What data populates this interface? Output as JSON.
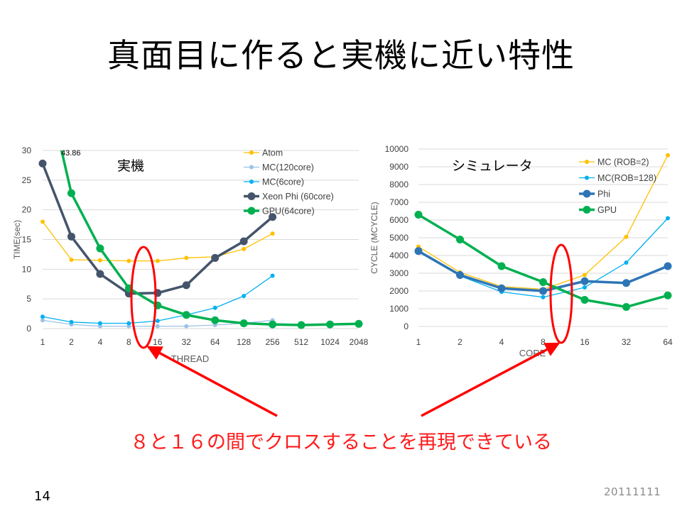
{
  "slide": {
    "title": "真面目に作ると実機に近い特性",
    "note": "８と１６の間でクロスすることを再現できている",
    "page_number": "14",
    "date": "20111111"
  },
  "colors": {
    "atom": "#ffc000",
    "mc120": "#9dc3e6",
    "mc6": "#00b0f0",
    "xeon": "#44546a",
    "gpu": "#00b050",
    "phi": "#2e75b6",
    "highlight": "#ff0000"
  },
  "chart_data": [
    {
      "type": "line",
      "title": "実機",
      "xlabel": "THREAD",
      "ylabel": "TIME(sec)",
      "categories": [
        "1",
        "2",
        "4",
        "8",
        "16",
        "32",
        "64",
        "128",
        "256",
        "512",
        "1024",
        "2048"
      ],
      "ylim": [
        0,
        30
      ],
      "yticks": [
        0,
        5,
        10,
        15,
        20,
        25,
        30
      ],
      "grid": true,
      "legend": "top-right",
      "annotations": [
        "43.86"
      ],
      "series": [
        {
          "name": "Atom",
          "color": "atom",
          "width": 1.3,
          "marker": 3,
          "values": [
            18,
            11.6,
            11.5,
            11.4,
            11.4,
            11.9,
            12.1,
            13.4,
            16,
            null,
            null,
            null
          ]
        },
        {
          "name": "MC(120core)",
          "color": "mc120",
          "width": 1.3,
          "marker": 3,
          "values": [
            1.4,
            0.7,
            0.4,
            0.4,
            0.4,
            0.4,
            0.6,
            0.9,
            1.4,
            null,
            null,
            null
          ]
        },
        {
          "name": "MC(6core)",
          "color": "mc6",
          "width": 1.3,
          "marker": 3,
          "values": [
            2,
            1.1,
            0.9,
            0.9,
            1.3,
            2.3,
            3.5,
            5.5,
            8.9,
            null,
            null,
            null
          ]
        },
        {
          "name": "Xeon Phi (60core)",
          "color": "xeon",
          "width": 3.5,
          "marker": 5.5,
          "values": [
            27.8,
            15.5,
            9.2,
            5.9,
            6.0,
            7.3,
            11.9,
            14.7,
            18.8,
            null,
            null,
            null
          ]
        },
        {
          "name": "GPU(64core)",
          "color": "gpu",
          "width": 3.5,
          "marker": 5.5,
          "values": [
            43.86,
            22.8,
            13.5,
            6.8,
            3.9,
            2.3,
            1.4,
            0.9,
            0.7,
            0.6,
            0.7,
            0.8
          ]
        }
      ]
    },
    {
      "type": "line",
      "title": "シミュレータ",
      "xlabel": "CORE",
      "ylabel": "CYCLE (MCYCLE)",
      "categories": [
        "1",
        "2",
        "4",
        "8",
        "16",
        "32",
        "64"
      ],
      "ylim": [
        0,
        10000
      ],
      "yticks": [
        0,
        1000,
        2000,
        3000,
        4000,
        5000,
        6000,
        7000,
        8000,
        9000,
        10000
      ],
      "grid": true,
      "legend": "top-right",
      "series": [
        {
          "name": "MC (ROB=2)",
          "color": "atom",
          "width": 1.3,
          "marker": 3,
          "values": [
            4500,
            3050,
            2250,
            2100,
            2900,
            5050,
            9650
          ]
        },
        {
          "name": "MC(ROB=128)",
          "color": "mc6",
          "width": 1.3,
          "marker": 3,
          "values": [
            4200,
            2850,
            1950,
            1650,
            2200,
            3600,
            6100
          ]
        },
        {
          "name": "Phi",
          "color": "phi",
          "width": 3.5,
          "marker": 5.5,
          "values": [
            4250,
            2900,
            2150,
            2000,
            2550,
            2450,
            3400
          ]
        },
        {
          "name": "GPU",
          "color": "gpu",
          "width": 3.5,
          "marker": 5.5,
          "values": [
            6300,
            4900,
            3400,
            2500,
            1500,
            1100,
            1750
          ]
        }
      ]
    }
  ]
}
